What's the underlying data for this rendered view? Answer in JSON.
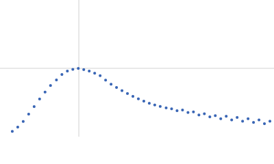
{
  "chart_data": {
    "type": "scatter",
    "color": "#3a66b5",
    "grid": true,
    "xlim": [
      0,
      6.02
    ],
    "ylim": [
      0,
      2.208
    ],
    "xticks": [
      1.732
    ],
    "yticks": [
      1.104
    ],
    "x": [
      0.27,
      0.39,
      0.51,
      0.63,
      0.75,
      0.87,
      0.99,
      1.11,
      1.24,
      1.36,
      1.48,
      1.6,
      1.72,
      1.84,
      1.96,
      2.08,
      2.2,
      2.32,
      2.44,
      2.56,
      2.68,
      2.8,
      2.92,
      3.04,
      3.16,
      3.28,
      3.4,
      3.52,
      3.65,
      3.77,
      3.89,
      4.01,
      4.13,
      4.25,
      4.37,
      4.49,
      4.61,
      4.73,
      4.85,
      4.97,
      5.09,
      5.21,
      5.33,
      5.45,
      5.57,
      5.69,
      5.81,
      5.93
    ],
    "values": [
      0.086,
      0.155,
      0.246,
      0.364,
      0.486,
      0.609,
      0.72,
      0.826,
      0.916,
      1.005,
      1.06,
      1.087,
      1.103,
      1.083,
      1.06,
      1.025,
      0.985,
      0.914,
      0.848,
      0.795,
      0.744,
      0.697,
      0.652,
      0.612,
      0.574,
      0.539,
      0.512,
      0.489,
      0.465,
      0.45,
      0.42,
      0.43,
      0.39,
      0.4,
      0.35,
      0.37,
      0.32,
      0.34,
      0.29,
      0.33,
      0.27,
      0.31,
      0.25,
      0.29,
      0.23,
      0.27,
      0.21,
      0.25
    ]
  }
}
